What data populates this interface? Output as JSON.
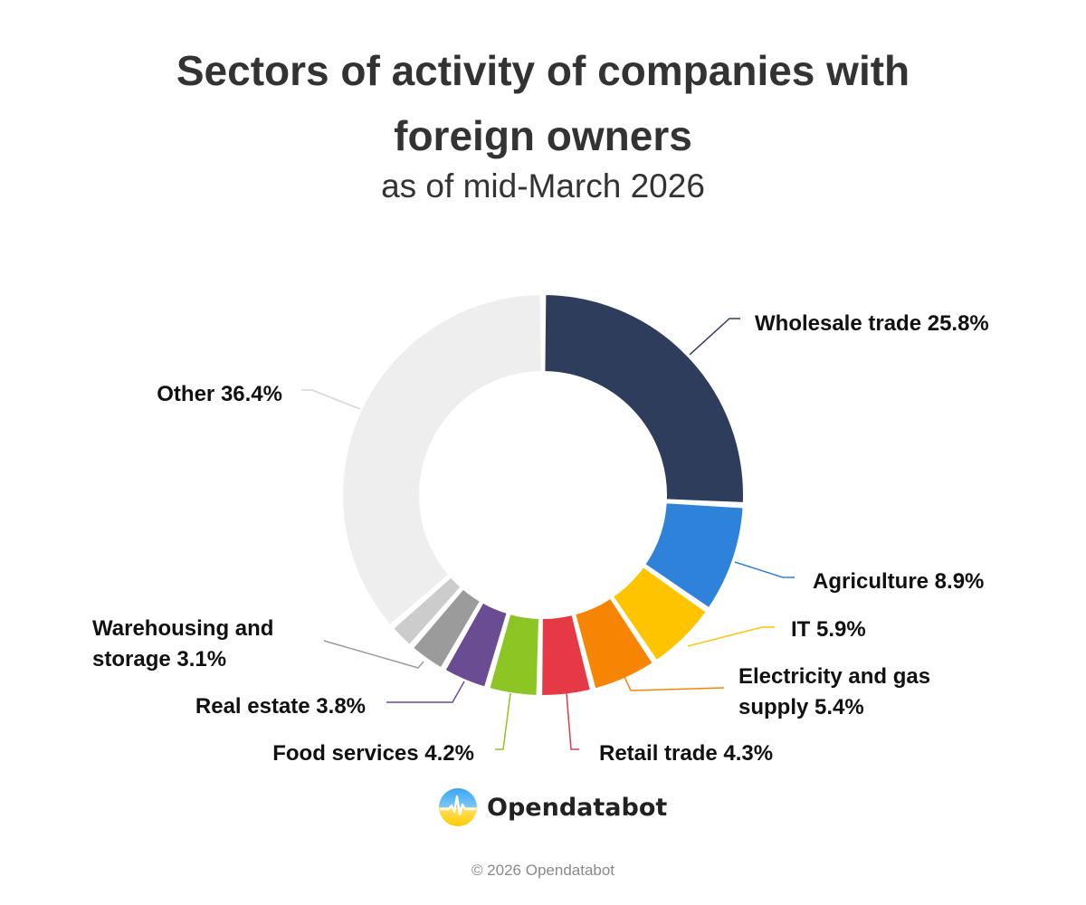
{
  "title_line1": "Sectors of activity of companies with",
  "title_line2": "foreign owners",
  "subtitle": "as of mid-March 2026",
  "brand": "Opendatabot",
  "footer": "© 2026 Opendatabot",
  "chart_data": {
    "type": "pie",
    "variant": "donut",
    "title": "Sectors of activity of companies with foreign owners",
    "subtitle": "as of mid-March 2026",
    "unit": "%",
    "slices": [
      {
        "id": "wholesale",
        "label_lines": [
          "Wholesale trade 25.8%"
        ],
        "value": 25.8,
        "color": "#2f3d5c"
      },
      {
        "id": "agriculture",
        "label_lines": [
          "Agriculture 8.9%"
        ],
        "value": 8.9,
        "color": "#2e82d9"
      },
      {
        "id": "it",
        "label_lines": [
          "IT 5.9%"
        ],
        "value": 5.9,
        "color": "#ffc400"
      },
      {
        "id": "electricity",
        "label_lines": [
          "Electricity and gas",
          "supply 5.4%"
        ],
        "value": 5.4,
        "color": "#f78504"
      },
      {
        "id": "retail",
        "label_lines": [
          "Retail trade 4.3%"
        ],
        "value": 4.3,
        "color": "#e63946"
      },
      {
        "id": "food",
        "label_lines": [
          "Food services 4.2%"
        ],
        "value": 4.2,
        "color": "#8cc524"
      },
      {
        "id": "realestate",
        "label_lines": [
          "Real estate 3.8%"
        ],
        "value": 3.8,
        "color": "#6a4c93"
      },
      {
        "id": "warehousing",
        "label_lines": [
          "Warehousing and",
          "storage 3.1%"
        ],
        "value": 3.1,
        "color": "#9b9b9b"
      },
      {
        "id": "small",
        "label_lines": [],
        "value": 2.2,
        "color": "#cccccc"
      },
      {
        "id": "other",
        "label_lines": [
          "Other 36.4%"
        ],
        "value": 36.4,
        "color": "#eeeeee"
      }
    ]
  }
}
